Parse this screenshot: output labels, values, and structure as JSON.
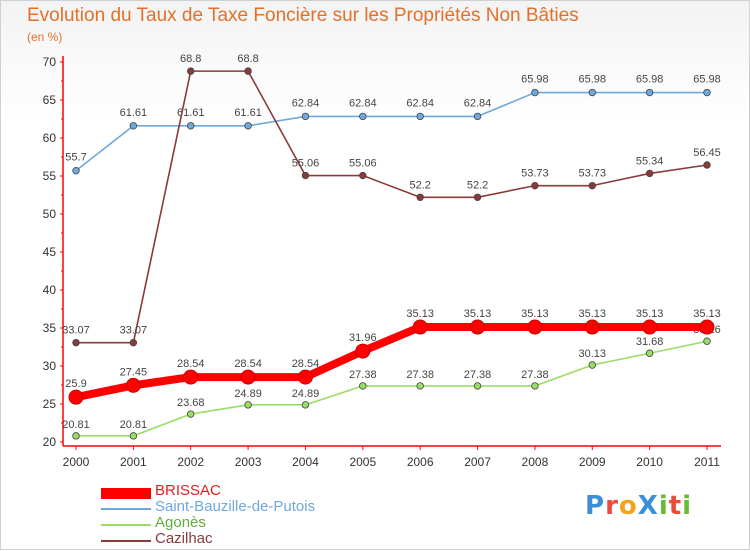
{
  "title": "Evolution du Taux de Taxe Foncière sur les Propriétés Non Bâties",
  "subtitle": "(en %)",
  "logo": "ProXiti",
  "chart_data": {
    "type": "line",
    "title": "Evolution du Taux de Taxe Foncière sur les Propriétés Non Bâties",
    "subtitle": "(en %)",
    "xlabel": "",
    "ylabel": "(en %)",
    "x": [
      "2000",
      "2001",
      "2002",
      "2003",
      "2004",
      "2005",
      "2006",
      "2007",
      "2008",
      "2009",
      "2010",
      "2011"
    ],
    "ylim": [
      20,
      70
    ],
    "yticks": [
      20,
      25,
      30,
      35,
      40,
      45,
      50,
      55,
      60,
      65,
      70
    ],
    "grid": false,
    "legend_position": "bottom-left",
    "series": [
      {
        "name": "BRISSAC",
        "color": "#ff0000",
        "values": [
          25.9,
          27.45,
          28.54,
          28.54,
          28.54,
          31.96,
          35.13,
          35.13,
          35.13,
          35.13,
          35.13,
          35.13
        ],
        "labels": [
          "25.9",
          "27.45",
          "28.54",
          "28.54",
          "28.54",
          "31.96",
          "35.13",
          "35.13",
          "35.13",
          "35.13",
          "35.13",
          "35.13"
        ]
      },
      {
        "name": "Saint-Bauzille-de-Putois",
        "color": "#6fa8dc",
        "values": [
          55.7,
          61.61,
          61.61,
          61.61,
          62.84,
          62.84,
          62.84,
          62.84,
          65.98,
          65.98,
          65.98,
          65.98
        ],
        "labels": [
          "55.7",
          "61.61",
          "61.61",
          "61.61",
          "62.84",
          "62.84",
          "62.84",
          "62.84",
          "65.98",
          "65.98",
          "65.98",
          "65.98"
        ]
      },
      {
        "name": "Agonès",
        "color": "#99dd66",
        "values": [
          20.81,
          20.81,
          23.68,
          24.89,
          24.89,
          27.38,
          27.38,
          27.38,
          27.38,
          30.13,
          31.68,
          33.26
        ],
        "labels": [
          "20.81",
          "20.81",
          "23.68",
          "24.89",
          "24.89",
          "27.38",
          "27.38",
          "27.38",
          "27.38",
          "30.13",
          "31.68",
          "33.26"
        ]
      },
      {
        "name": "Cazilhac",
        "color": "#8b3a3a",
        "values": [
          33.07,
          33.07,
          68.8,
          68.8,
          55.06,
          55.06,
          52.2,
          52.2,
          53.73,
          53.73,
          55.34,
          56.45
        ],
        "labels": [
          "33.07",
          "33.07",
          "68.8",
          "68.8",
          "55.06",
          "55.06",
          "52.2",
          "52.2",
          "53.73",
          "53.73",
          "55.34",
          "56.45"
        ]
      }
    ]
  }
}
